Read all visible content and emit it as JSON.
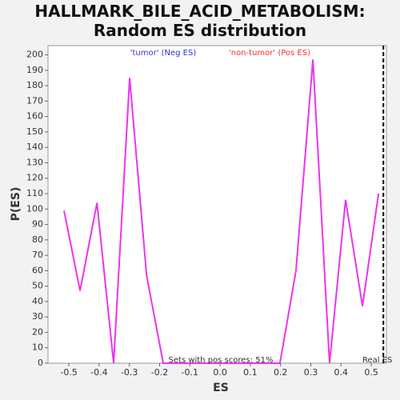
{
  "chart_data": {
    "type": "line",
    "title": "HALLMARK_BILE_ACID_METABOLISM: Random ES distribution",
    "xlabel": "ES",
    "ylabel": "P(ES)",
    "x": [
      -0.516,
      -0.463,
      -0.407,
      -0.352,
      -0.299,
      -0.243,
      -0.188,
      -0.133,
      -0.078,
      -0.023,
      0.032,
      0.087,
      0.142,
      0.198,
      0.251,
      0.307,
      0.362,
      0.415,
      0.471,
      0.524
    ],
    "series": [
      {
        "name": "P(ES)",
        "color": "#ee33ee",
        "values": [
          99,
          47,
          104,
          0,
          185,
          57,
          0,
          0,
          0,
          0,
          0,
          0,
          0,
          0,
          60,
          197,
          0,
          106,
          37,
          110
        ]
      }
    ],
    "xlim": [
      -0.569,
      0.55
    ],
    "ylim": [
      0,
      206
    ],
    "xticks": [
      -0.5,
      -0.4,
      -0.3,
      -0.2,
      -0.1,
      {
        "value": 0,
        "label": "0.0"
      },
      0.1,
      0.2,
      0.3,
      0.4,
      0.5
    ],
    "yticks": [
      0,
      10,
      20,
      30,
      40,
      50,
      60,
      70,
      80,
      90,
      100,
      110,
      120,
      130,
      140,
      150,
      160,
      170,
      180,
      190,
      200
    ],
    "real_es": 0.54,
    "annotations": [
      {
        "text": "'tumor' (Neg ES)",
        "color": "#3333cc"
      },
      {
        "text": "'non-tumor' (Pos ES)",
        "color": "#ee3333"
      },
      {
        "text": "Sets with pos scores: 51%",
        "color": "#333333"
      },
      {
        "text": "Real ES",
        "color": "#333333"
      }
    ]
  }
}
